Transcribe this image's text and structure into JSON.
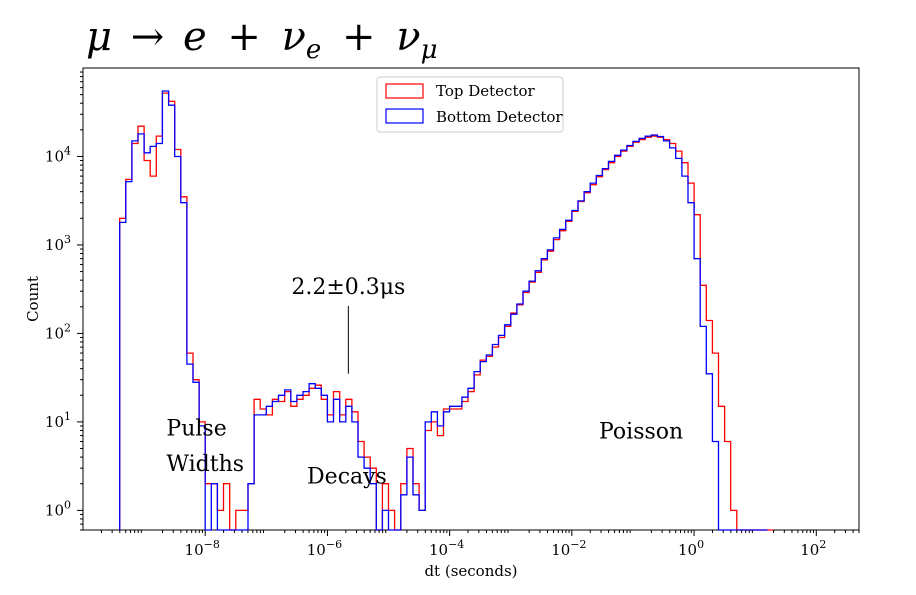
{
  "chart_data": {
    "type": "histogram",
    "title": {
      "mu": "μ",
      "arrow": "→",
      "e": "e",
      "plus1": "+",
      "nu1": "ν",
      "nu1_sub": "e",
      "plus2": "+",
      "nu2": "ν",
      "nu2_sub": "μ"
    },
    "xlabel": "dt (seconds)",
    "ylabel": "Count",
    "xscale": "log",
    "yscale": "log",
    "xlim": [
      1e-10,
      500
    ],
    "ylim": [
      0.6,
      100000
    ],
    "xticks": [
      {
        "base": "10",
        "exp": "−8",
        "value": 1e-08
      },
      {
        "base": "10",
        "exp": "−6",
        "value": 1e-06
      },
      {
        "base": "10",
        "exp": "−4",
        "value": 0.0001
      },
      {
        "base": "10",
        "exp": "−2",
        "value": 0.01
      },
      {
        "base": "10",
        "exp": "0",
        "value": 1
      },
      {
        "base": "10",
        "exp": "2",
        "value": 100
      }
    ],
    "yticks": [
      {
        "base": "10",
        "exp": "0",
        "value": 1
      },
      {
        "base": "10",
        "exp": "1",
        "value": 10
      },
      {
        "base": "10",
        "exp": "2",
        "value": 100
      },
      {
        "base": "10",
        "exp": "3",
        "value": 1000
      },
      {
        "base": "10",
        "exp": "4",
        "value": 10000
      }
    ],
    "legend": {
      "placement": "upper-center",
      "entries": [
        {
          "label": "Top Detector",
          "color": "#ff0000"
        },
        {
          "label": "Bottom Detector",
          "color": "#0000ff"
        }
      ]
    },
    "annotations": [
      {
        "text": "2.2±0.3μs",
        "x": 2.2e-06,
        "y": 280,
        "pointer_to_y": 35
      },
      {
        "text": "Pulse",
        "x": 2.5e-09,
        "y": 7
      },
      {
        "text": "Widths",
        "x": 2.5e-09,
        "y": 2.8
      },
      {
        "text": "Decays",
        "x": 5e-07,
        "y": 2.0
      },
      {
        "text": "Poisson",
        "x": 0.03,
        "y": 6.5
      }
    ],
    "bin_edges_log10": [
      -9.4,
      -9.3,
      -9.2,
      -9.1,
      -9.0,
      -8.9,
      -8.8,
      -8.7,
      -8.6,
      -8.5,
      -8.4,
      -8.3,
      -8.2,
      -8.1,
      -8.0,
      -7.9,
      -7.8,
      -7.7,
      -7.6,
      -7.5,
      -7.4,
      -7.3,
      -7.2,
      -7.1,
      -7.0,
      -6.9,
      -6.8,
      -6.7,
      -6.6,
      -6.5,
      -6.4,
      -6.3,
      -6.2,
      -6.1,
      -6.0,
      -5.9,
      -5.8,
      -5.7,
      -5.6,
      -5.5,
      -5.4,
      -5.3,
      -5.2,
      -5.1,
      -5.0,
      -4.9,
      -4.8,
      -4.7,
      -4.6,
      -4.5,
      -4.4,
      -4.3,
      -4.2,
      -4.1,
      -4.0,
      -3.9,
      -3.8,
      -3.7,
      -3.6,
      -3.5,
      -3.4,
      -3.3,
      -3.2,
      -3.1,
      -3.0,
      -2.9,
      -2.8,
      -2.7,
      -2.6,
      -2.5,
      -2.4,
      -2.3,
      -2.2,
      -2.1,
      -2.0,
      -1.9,
      -1.8,
      -1.7,
      -1.6,
      -1.5,
      -1.4,
      -1.3,
      -1.2,
      -1.1,
      -1.0,
      -0.9,
      -0.8,
      -0.7,
      -0.6,
      -0.5,
      -0.4,
      -0.3,
      -0.2,
      -0.1,
      0.0,
      0.1,
      0.2,
      0.3,
      0.4,
      0.5,
      0.6,
      0.7,
      0.8,
      0.9,
      1.0,
      1.1,
      1.2,
      1.3
    ],
    "series": [
      {
        "name": "Top Detector",
        "color": "#ff0000",
        "counts": [
          2000,
          5500,
          14000,
          22000,
          9000,
          6000,
          17000,
          52000,
          42000,
          12000,
          3500,
          60,
          30,
          10,
          2.0,
          2.0,
          1.0,
          2.0,
          0.5,
          1.0,
          1.0,
          2.0,
          18.0,
          14.0,
          12.0,
          18.0,
          17.0,
          22.0,
          15.0,
          18.0,
          20.0,
          24.0,
          26.0,
          18.0,
          12.0,
          22.0,
          12.0,
          18.0,
          13.0,
          6.0,
          4.0,
          3.0,
          0.5,
          2.0,
          1.0,
          0.5,
          2.0,
          5.0,
          2.0,
          1.0,
          8.0,
          10.0,
          7.0,
          14.0,
          14.0,
          14.0,
          17.0,
          22.0,
          34.0,
          50.0,
          55.0,
          70.0,
          90.0,
          120.0,
          170.0,
          210.0,
          290.0,
          380.0,
          490.0,
          680.0,
          850.0,
          1150.0,
          1450.0,
          1850.0,
          2400.0,
          3100.0,
          3900.0,
          4800.0,
          5900.0,
          7100.0,
          8500.0,
          10000.0,
          11500.0,
          13000.0,
          14500.0,
          15500.0,
          16500.0,
          17000.0,
          16500.0,
          15500.0,
          14000.0,
          11500.0,
          8500.0,
          5000.0,
          2200.0,
          350.0,
          140.0,
          60.0,
          15.0,
          6.0,
          1.0,
          0.5,
          0.5,
          0.5,
          0.5,
          0.5,
          0.5
        ]
      },
      {
        "name": "Bottom Detector",
        "color": "#0000ff",
        "counts": [
          1800,
          5200,
          15000,
          18000,
          11000,
          13000,
          14000,
          55000,
          38000,
          10000,
          3000,
          45,
          28,
          9,
          0.5,
          2.0,
          0.5,
          0.5,
          0.5,
          0.5,
          0.5,
          2.0,
          12.0,
          12.0,
          15.0,
          17.0,
          20.0,
          23.0,
          17.0,
          20.0,
          22.0,
          27.0,
          24.0,
          20.0,
          10.0,
          18.0,
          10.0,
          15.0,
          10.0,
          4.0,
          3.0,
          2.0,
          0.5,
          1.0,
          0.5,
          0.5,
          1.5,
          4.0,
          1.5,
          1.0,
          10.0,
          13.0,
          9.0,
          13.0,
          15.0,
          15.0,
          19.0,
          24.0,
          37.0,
          48.0,
          57.0,
          75.0,
          95.0,
          125.0,
          165.0,
          215.0,
          300.0,
          390.0,
          510.0,
          700.0,
          880.0,
          1200.0,
          1500.0,
          1900.0,
          2450.0,
          3150.0,
          4000.0,
          5000.0,
          6100.0,
          7300.0,
          8800.0,
          10300.0,
          11800.0,
          13300.0,
          14800.0,
          16000.0,
          17000.0,
          17500.0,
          16800.0,
          15000.0,
          12500.0,
          9500.0,
          6000.0,
          3000.0,
          700.0,
          120.0,
          35.0,
          6.0,
          0.5,
          0.5,
          0.5,
          0.5,
          0.5,
          0.5,
          0.5,
          0.5
        ]
      }
    ]
  }
}
